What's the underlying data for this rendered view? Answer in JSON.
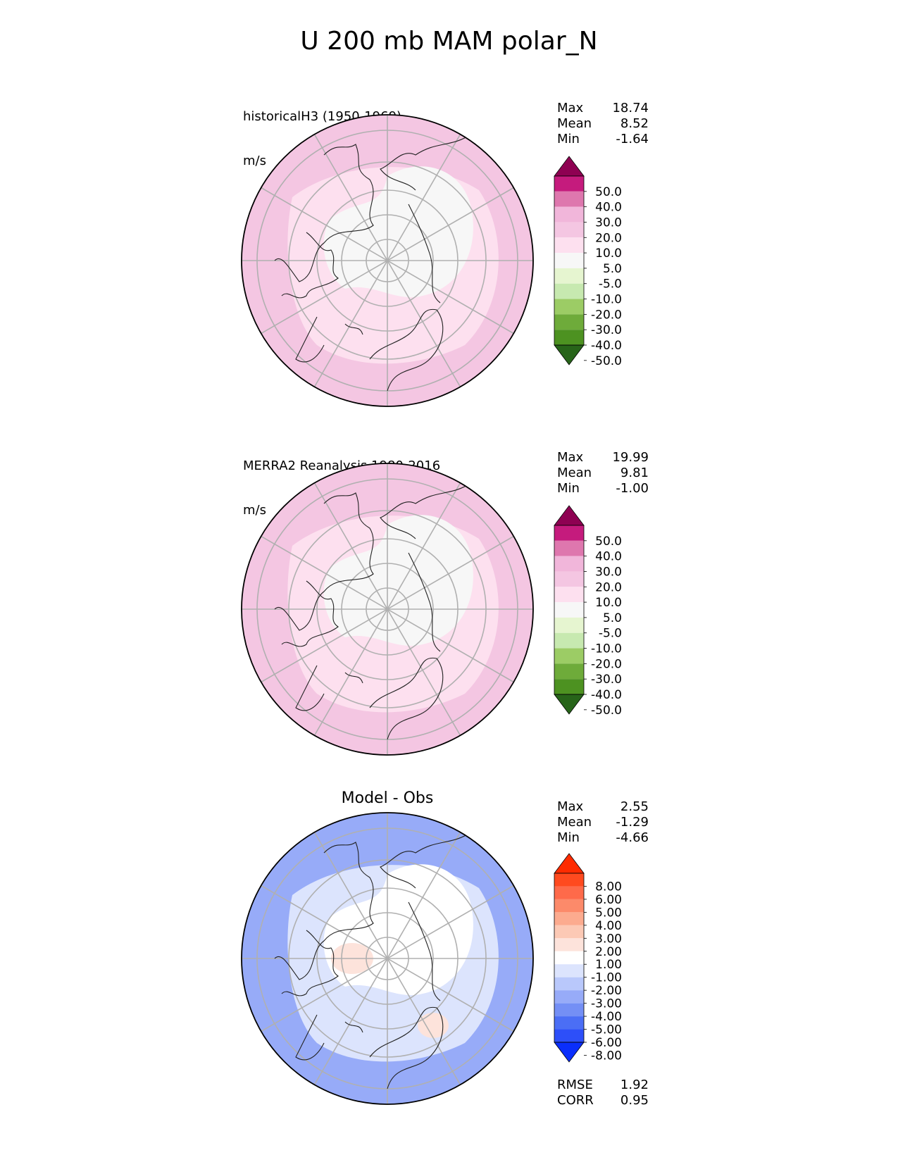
{
  "main_title": "U 200 mb MAM polar_N",
  "colors": {
    "map_outline": "#000000",
    "grid": "#b0b0b0",
    "coast": "#222222"
  },
  "chart_data": [
    {
      "type": "heatmap",
      "panel": "model",
      "title_lines": [
        "historicalH3 (1950-1969)",
        "m/s"
      ],
      "projection": "north polar stereographic",
      "stats": [
        {
          "label": "Max",
          "value": "18.74"
        },
        {
          "label": "Mean",
          "value": "8.52"
        },
        {
          "label": "Min",
          "value": "-1.64"
        }
      ],
      "colorbar": {
        "tick_labels": [
          "50.0",
          "40.0",
          "30.0",
          "20.0",
          "10.0",
          "5.0",
          "-5.0",
          "-10.0",
          "-20.0",
          "-30.0",
          "-40.0",
          "-50.0"
        ],
        "colors": [
          "#8e0152",
          "#c51b7d",
          "#de77ae",
          "#f1b6da",
          "#f4c6e2",
          "#fde0ef",
          "#f7f7f7",
          "#e6f5d0",
          "#c7e9b0",
          "#9ccc65",
          "#6eab3a",
          "#4d9221",
          "#276419"
        ],
        "extend": "both"
      },
      "field": {
        "outer_ring": "#f4c6e2",
        "inner_region": "#fde0ef",
        "core": "#f7f7f7"
      }
    },
    {
      "type": "heatmap",
      "panel": "obs",
      "title_lines": [
        "MERRA2 Reanalysis 1980-2016",
        "m/s"
      ],
      "projection": "north polar stereographic",
      "stats": [
        {
          "label": "Max",
          "value": "19.99"
        },
        {
          "label": "Mean",
          "value": "9.81"
        },
        {
          "label": "Min",
          "value": "-1.00"
        }
      ],
      "colorbar": {
        "tick_labels": [
          "50.0",
          "40.0",
          "30.0",
          "20.0",
          "10.0",
          "5.0",
          "-5.0",
          "-10.0",
          "-20.0",
          "-30.0",
          "-40.0",
          "-50.0"
        ],
        "colors": [
          "#8e0152",
          "#c51b7d",
          "#de77ae",
          "#f1b6da",
          "#f4c6e2",
          "#fde0ef",
          "#f7f7f7",
          "#e6f5d0",
          "#c7e9b0",
          "#9ccc65",
          "#6eab3a",
          "#4d9221",
          "#276419"
        ],
        "extend": "both"
      },
      "field": {
        "outer_ring": "#f4c6e2",
        "inner_region": "#fde0ef",
        "core": "#f7f7f7"
      }
    },
    {
      "type": "heatmap",
      "panel": "difference",
      "title_lines": [
        "Model - Obs"
      ],
      "projection": "north polar stereographic",
      "stats": [
        {
          "label": "Max",
          "value": "2.55"
        },
        {
          "label": "Mean",
          "value": "-1.29"
        },
        {
          "label": "Min",
          "value": "-4.66"
        }
      ],
      "metrics": [
        {
          "label": "RMSE",
          "value": "1.92"
        },
        {
          "label": "CORR",
          "value": "0.95"
        }
      ],
      "colorbar": {
        "tick_labels": [
          "8.00",
          "6.00",
          "5.00",
          "4.00",
          "3.00",
          "2.00",
          "1.00",
          "-1.00",
          "-2.00",
          "-3.00",
          "-4.00",
          "-5.00",
          "-6.00",
          "-8.00"
        ],
        "colors": [
          "#ff2b00",
          "#ff4a1f",
          "#fe6a4a",
          "#fc8a6a",
          "#fcab8f",
          "#fcc9b5",
          "#fde3db",
          "#ffffff",
          "#dce4fd",
          "#b9c8fb",
          "#97abf8",
          "#748ff5",
          "#4b6ef5",
          "#2d4ff9",
          "#0a2efc"
        ],
        "extend": "both"
      },
      "field": {
        "outer_ring": "#97abf8",
        "inner_region": "#dce4fd",
        "core": "#ffffff",
        "positive_patch": "#fde3db"
      }
    }
  ]
}
